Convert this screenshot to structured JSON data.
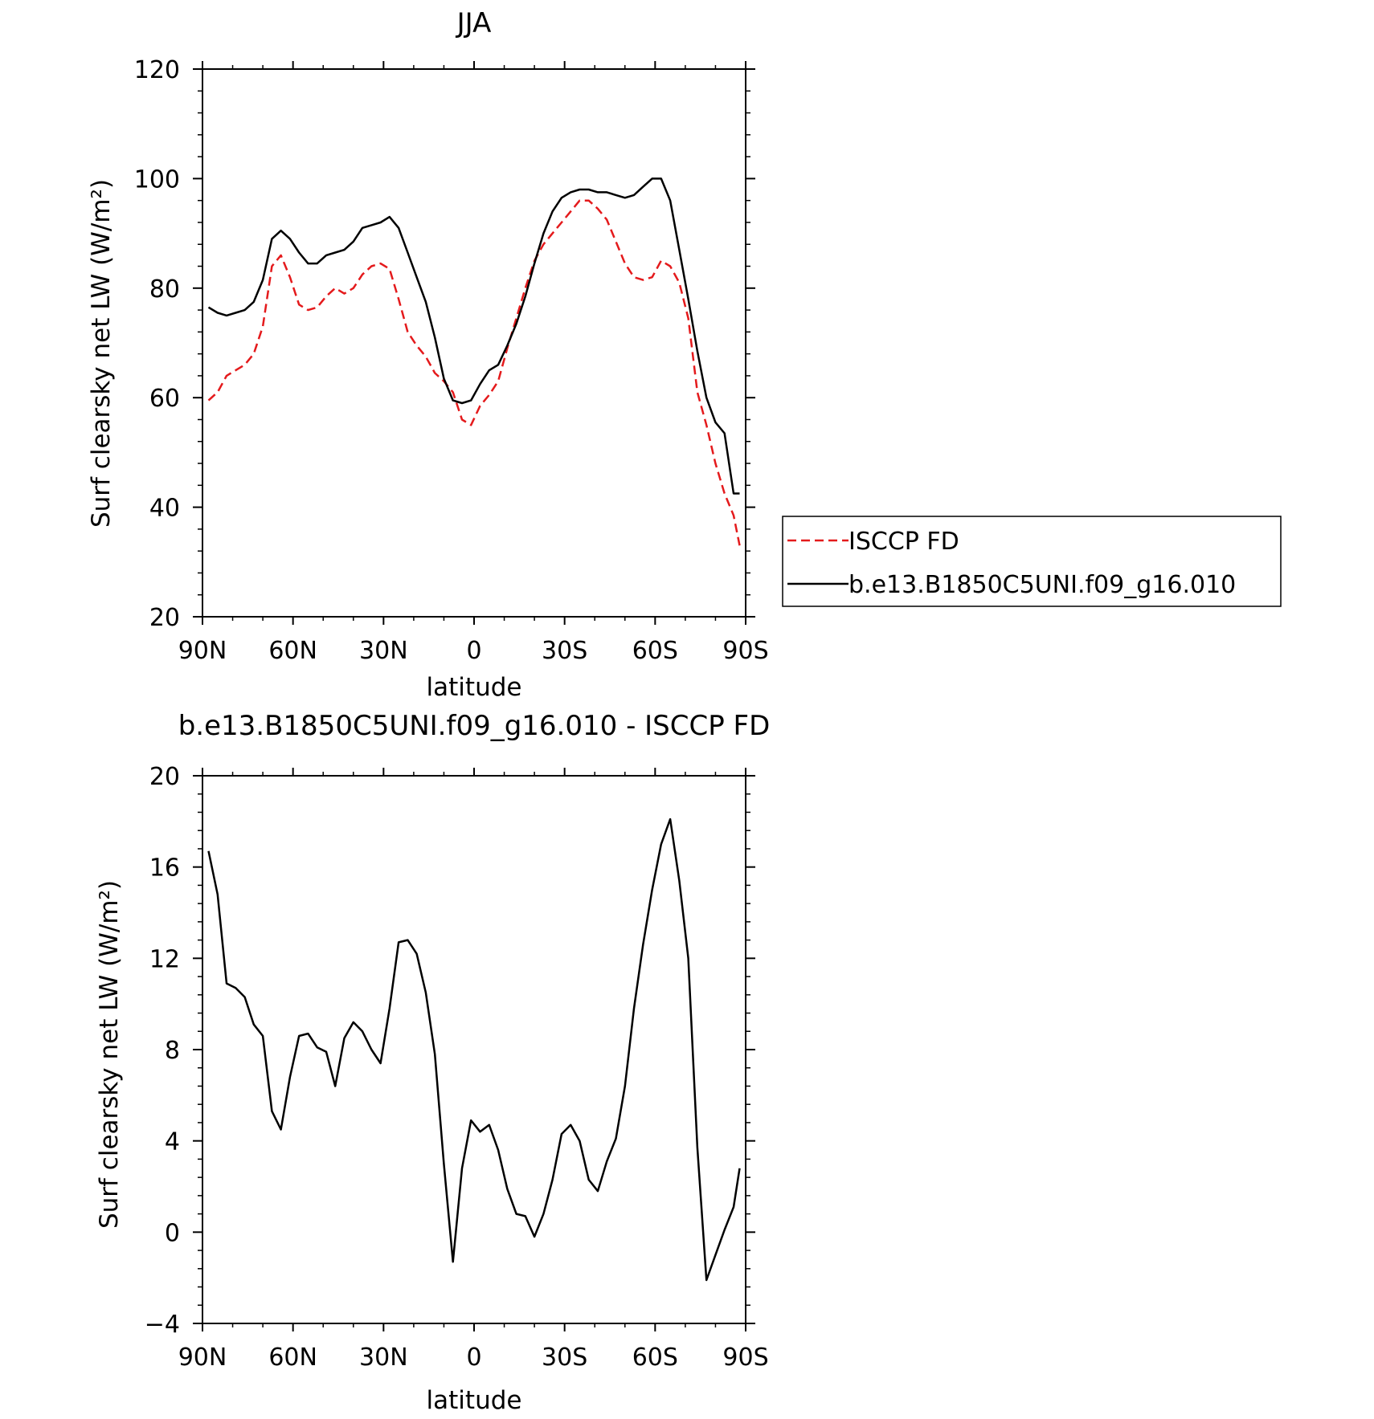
{
  "chart_data": [
    {
      "type": "line",
      "title": "JJA",
      "xlabel": "latitude",
      "ylabel": "Surf clearsky net LW (W/m²)",
      "xlim": [
        90,
        -90
      ],
      "ylim": [
        20,
        120
      ],
      "x_tick_values": [
        90,
        60,
        30,
        0,
        -30,
        -60,
        -90
      ],
      "x_tick_labels": [
        "90N",
        "60N",
        "30N",
        "0",
        "30S",
        "60S",
        "90S"
      ],
      "y_ticks": [
        20,
        40,
        60,
        80,
        100,
        120
      ],
      "legend": {
        "placement": "right, outside plot"
      },
      "x": [
        88,
        85,
        82,
        79,
        76,
        73,
        70,
        67,
        64,
        61,
        58,
        55,
        52,
        49,
        46,
        43,
        40,
        37,
        34,
        31,
        28,
        25,
        22,
        19,
        16,
        13,
        10,
        7,
        4,
        1,
        -2,
        -5,
        -8,
        -11,
        -14,
        -17,
        -20,
        -23,
        -26,
        -29,
        -32,
        -35,
        -38,
        -41,
        -44,
        -47,
        -50,
        -53,
        -56,
        -59,
        -62,
        -65,
        -68,
        -71,
        -74,
        -77,
        -80,
        -83,
        -86,
        -88
      ],
      "series": [
        {
          "name": "ISCCP FD",
          "color": "#e41a1c",
          "style": "dashed",
          "values": [
            59.5,
            61,
            64,
            65,
            66,
            68,
            73,
            84,
            86,
            82,
            77,
            76,
            76.5,
            78.5,
            80,
            79,
            80,
            82.5,
            84,
            84.5,
            83.5,
            78,
            72,
            69.5,
            67.5,
            64.5,
            63,
            61,
            56,
            55,
            58.5,
            60.5,
            63,
            69,
            74.5,
            80,
            85,
            88,
            90,
            92,
            94,
            96,
            96,
            94.5,
            92.5,
            88.5,
            84.5,
            82,
            81.5,
            82,
            85,
            84,
            81,
            74.5,
            61,
            55,
            48,
            42.5,
            38.5,
            33
          ]
        },
        {
          "name": "b.e13.B1850C5UNI.f09_g16.010",
          "color": "#000000",
          "style": "solid",
          "values": [
            76.5,
            75.5,
            75,
            75.5,
            76,
            77.5,
            81.5,
            89,
            90.5,
            89,
            86.5,
            84.5,
            84.5,
            86,
            86.5,
            87,
            88.5,
            91,
            91.5,
            92,
            93,
            91,
            86.5,
            82,
            77.5,
            71,
            63.5,
            59.5,
            59,
            59.5,
            62.5,
            65,
            66,
            69.5,
            73.5,
            78.5,
            84.5,
            90,
            94,
            96.5,
            97.5,
            98,
            98,
            97.5,
            97.5,
            97,
            96.5,
            97,
            98.5,
            100,
            100,
            96,
            87,
            78,
            68.5,
            60,
            55.5,
            53.5,
            42.5,
            42.5
          ]
        }
      ]
    },
    {
      "type": "line",
      "title": "b.e13.B1850C5UNI.f09_g16.010 - ISCCP FD",
      "xlabel": "latitude",
      "ylabel": "Surf clearsky net LW (W/m²)",
      "xlim": [
        90,
        -90
      ],
      "ylim": [
        -4,
        20
      ],
      "x_tick_values": [
        90,
        60,
        30,
        0,
        -30,
        -60,
        -90
      ],
      "x_tick_labels": [
        "90N",
        "60N",
        "30N",
        "0",
        "30S",
        "60S",
        "90S"
      ],
      "y_ticks": [
        -4,
        0,
        4,
        8,
        12,
        16,
        20
      ],
      "x": [
        88,
        85,
        82,
        79,
        76,
        73,
        70,
        67,
        64,
        61,
        58,
        55,
        52,
        49,
        46,
        43,
        40,
        37,
        34,
        31,
        28,
        25,
        22,
        19,
        16,
        13,
        10,
        7,
        4,
        1,
        -2,
        -5,
        -8,
        -11,
        -14,
        -17,
        -20,
        -23,
        -26,
        -29,
        -32,
        -35,
        -38,
        -41,
        -44,
        -47,
        -50,
        -53,
        -56,
        -59,
        -62,
        -65,
        -68,
        -71,
        -74,
        -77,
        -80,
        -83,
        -86,
        -88
      ],
      "series": [
        {
          "color": "#000000",
          "style": "solid",
          "values": [
            16.7,
            14.8,
            10.9,
            10.7,
            10.3,
            9.1,
            8.6,
            5.3,
            4.5,
            6.8,
            8.6,
            8.7,
            8.1,
            7.9,
            6.4,
            8.5,
            9.2,
            8.8,
            8,
            7.4,
            9.8,
            12.7,
            12.8,
            12.2,
            10.5,
            7.8,
            3,
            -1.3,
            2.8,
            4.9,
            4.4,
            4.7,
            3.6,
            1.9,
            0.8,
            0.7,
            -0.2,
            0.8,
            2.3,
            4.3,
            4.7,
            4,
            2.3,
            1.8,
            3.1,
            4.1,
            6.4,
            9.8,
            12.6,
            15,
            17,
            18.1,
            15.4,
            12,
            3.7,
            -2.1,
            -1,
            0.1,
            1.1,
            2.8
          ]
        }
      ]
    }
  ]
}
